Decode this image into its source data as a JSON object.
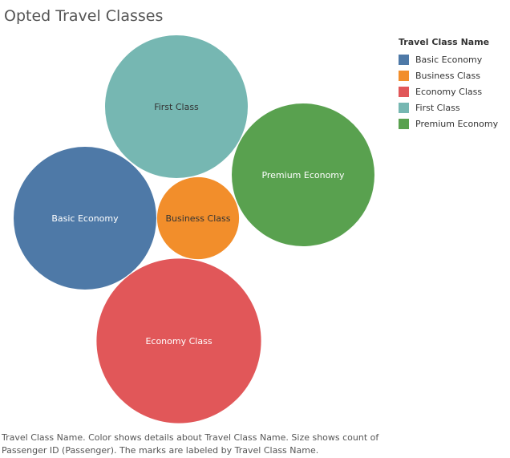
{
  "title": "Opted Travel Classes",
  "caption": "Travel Class Name.  Color shows details about Travel Class Name.  Size shows count of Passenger ID (Passenger).  The marks are labeled by Travel Class Name.",
  "legend": {
    "title": "Travel Class Name",
    "placement": "right",
    "items": [
      {
        "label": "Basic Economy",
        "color": "#4e79a7"
      },
      {
        "label": "Business Class",
        "color": "#f28e2b"
      },
      {
        "label": "Economy Class",
        "color": "#e15759"
      },
      {
        "label": "First Class",
        "color": "#76b7b2"
      },
      {
        "label": "Premium Economy",
        "color": "#59a14f"
      }
    ]
  },
  "chart_data": {
    "type": "bubble",
    "size_measure": "count of Passenger ID",
    "series": [
      {
        "name": "First Class",
        "value": 1.0,
        "color": "#76b7b2",
        "label_color": "#333333"
      },
      {
        "name": "Premium Economy",
        "value": 1.0,
        "color": "#59a14f",
        "label_color": "#ffffff"
      },
      {
        "name": "Basic Economy",
        "value": 1.0,
        "color": "#4e79a7",
        "label_color": "#ffffff"
      },
      {
        "name": "Business Class",
        "value": 0.33,
        "color": "#f28e2b",
        "label_color": "#333333"
      },
      {
        "name": "Economy Class",
        "value": 1.33,
        "color": "#e15759",
        "label_color": "#ffffff"
      }
    ]
  }
}
